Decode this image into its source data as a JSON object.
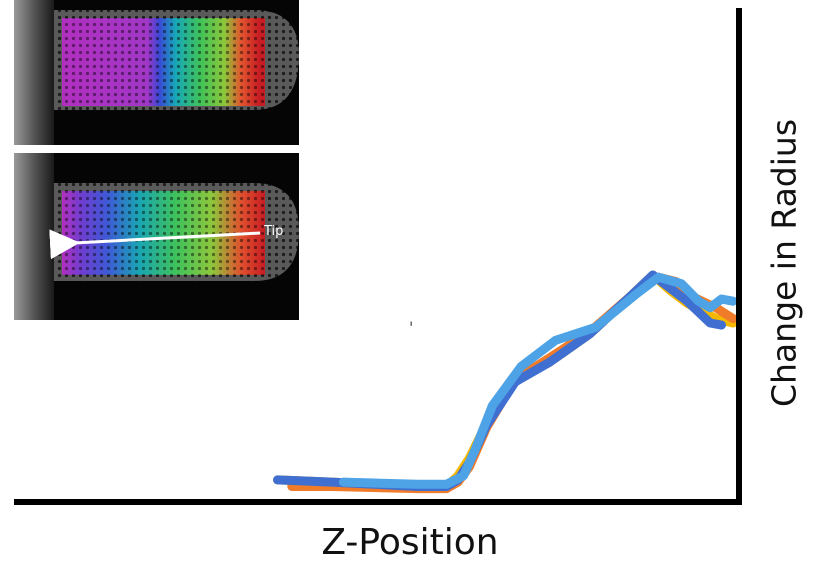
{
  "chart_data": {
    "type": "line",
    "title": "",
    "xlabel": "Z-Position",
    "ylabel": "Change in Radius",
    "xlim": [
      0,
      100
    ],
    "ylim": [
      0,
      100
    ],
    "grid": false,
    "legend": "none",
    "series": [
      {
        "color": "#f5b800",
        "values": [
          [
            20.5,
            6
          ],
          [
            30,
            5
          ],
          [
            45,
            3
          ],
          [
            50,
            3
          ],
          [
            52,
            8
          ],
          [
            54,
            16
          ],
          [
            57,
            32
          ],
          [
            62,
            52
          ],
          [
            68,
            60
          ],
          [
            75,
            73
          ],
          [
            82,
            90
          ],
          [
            86,
            100
          ],
          [
            89,
            93
          ],
          [
            92,
            87
          ],
          [
            97,
            80
          ],
          [
            100,
            78
          ]
        ]
      },
      {
        "color": "#f07c2a",
        "values": [
          [
            23,
            3
          ],
          [
            30,
            3
          ],
          [
            45,
            2
          ],
          [
            50,
            2
          ],
          [
            52,
            5
          ],
          [
            54,
            12
          ],
          [
            57,
            30
          ],
          [
            62,
            52
          ],
          [
            68,
            62
          ],
          [
            75,
            74
          ],
          [
            82,
            90
          ],
          [
            87,
            99
          ],
          [
            90,
            97
          ],
          [
            93,
            90
          ],
          [
            97,
            85
          ],
          [
            100,
            80
          ]
        ]
      },
      {
        "color": "#3f6fd1",
        "values": [
          [
            20.5,
            6
          ],
          [
            30,
            5
          ],
          [
            45,
            3
          ],
          [
            50,
            3
          ],
          [
            52,
            6
          ],
          [
            54,
            14
          ],
          [
            57,
            31
          ],
          [
            62,
            51
          ],
          [
            68,
            60
          ],
          [
            75,
            73
          ],
          [
            82,
            90
          ],
          [
            86,
            100
          ],
          [
            89,
            94
          ],
          [
            92,
            88
          ],
          [
            96,
            78
          ],
          [
            98,
            77
          ]
        ]
      },
      {
        "color": "#4da3e6",
        "values": [
          [
            32,
            5
          ],
          [
            45,
            4
          ],
          [
            50,
            4
          ],
          [
            53,
            8
          ],
          [
            55,
            20
          ],
          [
            58,
            40
          ],
          [
            63,
            58
          ],
          [
            69,
            70
          ],
          [
            76,
            76
          ],
          [
            83,
            91
          ],
          [
            87,
            99
          ],
          [
            91,
            96
          ],
          [
            94,
            88
          ],
          [
            96,
            85
          ],
          [
            98,
            89
          ],
          [
            100,
            88
          ]
        ]
      }
    ]
  },
  "insets": [
    {
      "tip_label": ""
    },
    {
      "tip_label": "Tip"
    }
  ],
  "stray_mark": "'"
}
